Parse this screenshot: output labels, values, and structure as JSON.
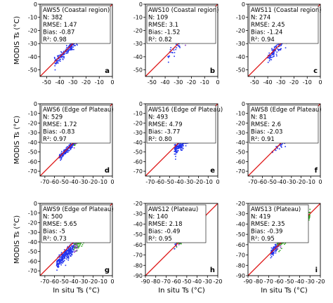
{
  "colors": {
    "green": "#33aa22",
    "blue": "#2233ee",
    "purple": "#8a33c8",
    "line": "#dd1111"
  },
  "chart_data": [
    {
      "type": "scatter",
      "letter": "a",
      "title": "AWS5 (Coastal region)",
      "stats": [
        "N: 382",
        "RMSE: 1.47",
        "Bias: -0.87",
        "R²: 0.98"
      ],
      "xlabel": "",
      "ylabel": "MODIS Ts (°C)",
      "xlim": [
        -55,
        0
      ],
      "ylim": [
        -55,
        0
      ],
      "xticks": [
        -50,
        -40,
        -30,
        -20,
        -10,
        0
      ],
      "yticks": [
        -50,
        -40,
        -30,
        -20,
        -10,
        0
      ],
      "cloud": {
        "n": 382,
        "x0": -44,
        "x1": -3,
        "bias": -0.87,
        "spread": 1.6,
        "blue_below": -20
      }
    },
    {
      "type": "scatter",
      "letter": "b",
      "title": "AWS10 (Coastal region)",
      "stats": [
        "N: 109",
        "RMSE: 3.1",
        "Bias: -1.52",
        "R²: 0.82"
      ],
      "xlabel": "",
      "ylabel": "",
      "xlim": [
        -55,
        0
      ],
      "ylim": [
        -55,
        0
      ],
      "xticks": [
        -50,
        -40,
        -30,
        -20,
        -10,
        0
      ],
      "yticks": [
        -50,
        -40,
        -30,
        -20,
        -10,
        0
      ],
      "cloud": {
        "n": 109,
        "x0": -38,
        "x1": -4,
        "bias": -1.52,
        "spread": 2.8,
        "blue_below": -25
      }
    },
    {
      "type": "scatter",
      "letter": "c",
      "title": "AWS11 (Coastal region)",
      "stats": [
        "N: 274",
        "RMSE: 2.45",
        "Bias: -1.24",
        "R²: 0.94"
      ],
      "xlabel": "",
      "ylabel": "",
      "xlim": [
        -55,
        0
      ],
      "ylim": [
        -55,
        0
      ],
      "xticks": [
        -50,
        -40,
        -30,
        -20,
        -10,
        0
      ],
      "yticks": [
        -50,
        -40,
        -30,
        -20,
        -10,
        0
      ],
      "cloud": {
        "n": 274,
        "x0": -40,
        "x1": -3,
        "bias": -1.24,
        "spread": 2.2,
        "blue_below": -22
      }
    },
    {
      "type": "scatter",
      "letter": "d",
      "title": "AWS6 (Edge of Plateau)",
      "stats": [
        "N: 529",
        "RMSE: 1.72",
        "Bias: -0.83",
        "R²: 0.97"
      ],
      "xlabel": "",
      "ylabel": "MODIS Ts (°C)",
      "xlim": [
        -75,
        0
      ],
      "ylim": [
        -75,
        0
      ],
      "xticks": [
        -70,
        -60,
        -50,
        -40,
        -30,
        -20,
        -10,
        0
      ],
      "yticks": [
        -70,
        -60,
        -50,
        -40,
        -30,
        -20,
        -10,
        0
      ],
      "cloud": {
        "n": 529,
        "x0": -55,
        "x1": -8,
        "bias": -0.83,
        "spread": 1.7,
        "blue_below": -40
      }
    },
    {
      "type": "scatter",
      "letter": "e",
      "title": "AWS16 (Edge of Plateau)",
      "stats": [
        "N: 493",
        "RMSE: 4.79",
        "Bias: -3.77",
        "R²: 0.80"
      ],
      "xlabel": "",
      "ylabel": "",
      "xlim": [
        -75,
        0
      ],
      "ylim": [
        -75,
        0
      ],
      "xticks": [
        -70,
        -60,
        -50,
        -40,
        -30,
        -20,
        -10,
        0
      ],
      "yticks": [
        -70,
        -60,
        -50,
        -40,
        -30,
        -20,
        -10,
        0
      ],
      "cloud": {
        "n": 493,
        "x0": -45,
        "x1": -8,
        "bias": -3.77,
        "spread": 3.0,
        "blue_below": -28
      }
    },
    {
      "type": "scatter",
      "letter": "f",
      "title": "AWS8 (Edge of Plateau)",
      "stats": [
        "N: 81",
        "RMSE: 2.6",
        "Bias: -2.03",
        "R²: 0.91"
      ],
      "xlabel": "",
      "ylabel": "",
      "xlim": [
        -75,
        0
      ],
      "ylim": [
        -75,
        0
      ],
      "xticks": [
        -70,
        -60,
        -50,
        -40,
        -30,
        -20,
        -10,
        0
      ],
      "yticks": [
        -70,
        -60,
        -50,
        -40,
        -30,
        -20,
        -10,
        0
      ],
      "cloud": {
        "n": 81,
        "x0": -50,
        "x1": -12,
        "bias": -2.03,
        "spread": 2.0,
        "blue_below": -35
      }
    },
    {
      "type": "scatter",
      "letter": "g",
      "title": "AWS9 (Edge of Plateau)",
      "stats": [
        "N: 500",
        "RMSE: 5.65",
        "Bias: -5",
        "R²: 0.73"
      ],
      "xlabel": "In situ Ts (°C)",
      "ylabel": "MODIS Ts (°C)",
      "xlim": [
        -75,
        0
      ],
      "ylim": [
        -75,
        0
      ],
      "xticks": [
        -70,
        -60,
        -50,
        -40,
        -30,
        -20,
        -10,
        0
      ],
      "yticks": [
        -70,
        -60,
        -50,
        -40,
        -30,
        -20,
        -10,
        0
      ],
      "cloud": {
        "n": 500,
        "x0": -58,
        "x1": -18,
        "bias": -5.0,
        "spread": 3.2,
        "blue_below": -40
      }
    },
    {
      "type": "scatter",
      "letter": "h",
      "title": "AWS12 (Plateau)",
      "stats": [
        "N: 140",
        "RMSE: 2.18",
        "Bias: -0.49",
        "R²: 0.95"
      ],
      "xlabel": "In situ Ts (°C)",
      "ylabel": "",
      "xlim": [
        -90,
        -20
      ],
      "ylim": [
        -90,
        -20
      ],
      "xticks": [
        -90,
        -80,
        -70,
        -60,
        -50,
        -40,
        -30,
        -20
      ],
      "yticks": [
        -90,
        -80,
        -70,
        -60,
        -50,
        -40,
        -30,
        -20
      ],
      "cloud": {
        "n": 140,
        "x0": -62,
        "x1": -32,
        "bias": -0.49,
        "spread": 2.0,
        "blue_below": -60
      }
    },
    {
      "type": "scatter",
      "letter": "i",
      "title": "AWS13 (Plateau)",
      "stats": [
        "N: 419",
        "RMSE: 2.35",
        "Bias: -0.39",
        "R²: 0.95"
      ],
      "xlabel": "In situ Ts (°C)",
      "ylabel": "",
      "xlim": [
        -90,
        -20
      ],
      "ylim": [
        -90,
        -20
      ],
      "xticks": [
        -90,
        -80,
        -70,
        -60,
        -50,
        -40,
        -30,
        -20
      ],
      "yticks": [
        -90,
        -80,
        -70,
        -60,
        -50,
        -40,
        -30,
        -20
      ],
      "cloud": {
        "n": 419,
        "x0": -68,
        "x1": -30,
        "bias": -0.39,
        "spread": 2.2,
        "blue_below": -62
      }
    }
  ]
}
